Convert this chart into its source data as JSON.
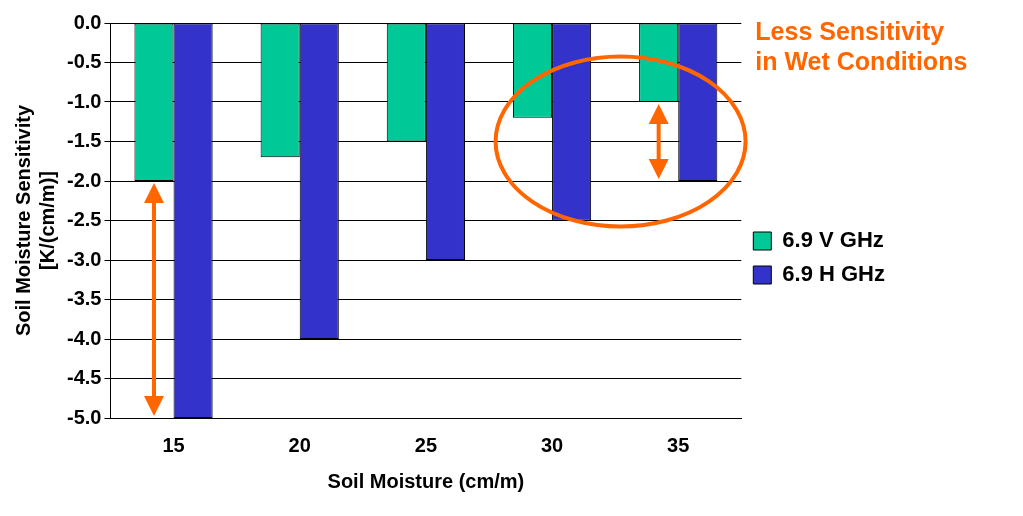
{
  "chart_data": {
    "type": "bar",
    "categories": [
      "15",
      "20",
      "25",
      "30",
      "35"
    ],
    "series": [
      {
        "name": "6.9 V GHz",
        "color": "#00c896",
        "values": [
          -2.0,
          -1.7,
          -1.5,
          -1.2,
          -1.0
        ]
      },
      {
        "name": "6.9 H GHz",
        "color": "#3333cc",
        "values": [
          -5.0,
          -4.0,
          -3.0,
          -2.5,
          -2.0
        ]
      }
    ],
    "xlabel": "Soil Moisture (cm/m)",
    "ylabel": "Soil Moisture Sensitivity\n[K/(cm/m)]",
    "ylim": [
      -5,
      0
    ],
    "yticks": [
      {
        "value": 0,
        "label": "0.0"
      },
      {
        "value": -0.5,
        "label": "-0.5"
      },
      {
        "value": -1,
        "label": "-1.0"
      },
      {
        "value": -1.5,
        "label": "-1.5"
      },
      {
        "value": -2,
        "label": "-2.0"
      },
      {
        "value": -2.5,
        "label": "-2.5"
      },
      {
        "value": -3,
        "label": "-3.0"
      },
      {
        "value": -3.5,
        "label": "-3.5"
      },
      {
        "value": -4,
        "label": "-4.0"
      },
      {
        "value": -4.5,
        "label": "-4.5"
      },
      {
        "value": -5,
        "label": "-5.0"
      }
    ],
    "grid": "y",
    "legend": "right",
    "annotations": [
      "Less Sensitivity\nin Wet Conditions"
    ]
  }
}
